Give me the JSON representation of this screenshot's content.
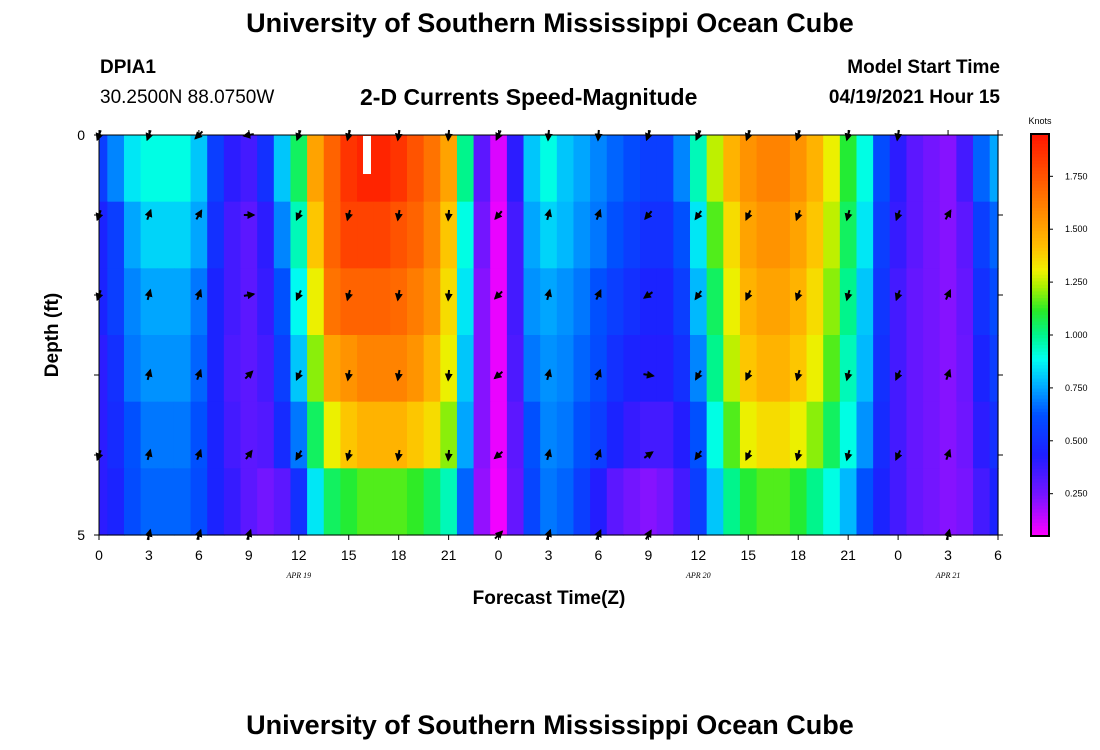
{
  "header": {
    "title": "University of Southern Mississippi Ocean Cube",
    "station": "DPIA1",
    "coords": "30.2500N  88.0750W",
    "chart_subtitle": "2-D Currents Speed-Magnitude",
    "model_start_label": "Model Start Time",
    "model_start_value": "04/19/2021 Hour 15"
  },
  "footer": {
    "title": "University of Southern Mississippi Ocean Cube"
  },
  "chart_data": {
    "type": "heatmap",
    "title": "2-D Currents Speed-Magnitude",
    "xlabel": "Forecast Time(Z)",
    "ylabel": "Depth (ft)",
    "x_ticks": [
      "0",
      "3",
      "6",
      "9",
      "12",
      "15",
      "18",
      "21",
      "0",
      "3",
      "6",
      "9",
      "12",
      "15",
      "18",
      "21",
      "0",
      "3",
      "6"
    ],
    "x_range_hours": [
      0,
      54
    ],
    "y_tick_labels": [
      "0",
      "5"
    ],
    "y_range_ft": [
      0,
      5
    ],
    "date_labels": [
      {
        "text": "APR  19",
        "hour": 12
      },
      {
        "text": "APR  20",
        "hour": 36
      },
      {
        "text": "APR  21",
        "hour": 51
      }
    ],
    "colorbar": {
      "unit": "Knots",
      "min": 0.05,
      "max": 1.95,
      "ticks": [
        "0.250",
        "0.500",
        "0.750",
        "1.000",
        "1.250",
        "1.500",
        "1.750"
      ],
      "tick_values": [
        0.25,
        0.5,
        0.75,
        1.0,
        1.25,
        1.5,
        1.75
      ]
    },
    "hours": [
      0,
      1,
      2,
      3,
      4,
      5,
      6,
      7,
      8,
      9,
      10,
      11,
      12,
      13,
      14,
      15,
      16,
      17,
      18,
      19,
      20,
      21,
      22,
      23,
      24,
      25,
      26,
      27,
      28,
      29,
      30,
      31,
      32,
      33,
      34,
      35,
      36,
      37,
      38,
      39,
      40,
      41,
      42,
      43,
      44,
      45,
      46,
      47,
      48,
      49,
      50,
      51,
      52,
      53,
      54
    ],
    "depth_layers_ft": [
      0,
      1,
      2,
      3,
      4,
      5
    ],
    "speed_knots": [
      [
        0.55,
        0.7,
        0.85,
        0.9,
        0.9,
        0.9,
        0.8,
        0.55,
        0.4,
        0.35,
        0.5,
        0.8,
        1.05,
        1.5,
        1.7,
        1.85,
        1.9,
        1.9,
        1.85,
        1.75,
        1.65,
        1.5,
        1.0,
        0.3,
        0.1,
        0.4,
        0.8,
        0.9,
        0.8,
        0.75,
        0.7,
        0.65,
        0.6,
        0.55,
        0.55,
        0.7,
        0.95,
        1.25,
        1.45,
        1.55,
        1.6,
        1.6,
        1.55,
        1.45,
        1.3,
        1.1,
        0.9,
        0.6,
        0.4,
        0.3,
        0.25,
        0.22,
        0.35,
        0.65,
        0.75
      ],
      [
        0.45,
        0.55,
        0.75,
        0.82,
        0.82,
        0.82,
        0.75,
        0.5,
        0.35,
        0.3,
        0.4,
        0.7,
        0.95,
        1.4,
        1.7,
        1.8,
        1.8,
        1.8,
        1.75,
        1.7,
        1.6,
        1.4,
        0.9,
        0.25,
        0.08,
        0.35,
        0.75,
        0.82,
        0.78,
        0.72,
        0.68,
        0.62,
        0.55,
        0.5,
        0.5,
        0.62,
        0.85,
        1.15,
        1.35,
        1.5,
        1.55,
        1.55,
        1.5,
        1.4,
        1.25,
        1.05,
        0.85,
        0.55,
        0.38,
        0.3,
        0.25,
        0.22,
        0.3,
        0.55,
        0.65
      ],
      [
        0.45,
        0.55,
        0.7,
        0.75,
        0.75,
        0.75,
        0.68,
        0.45,
        0.35,
        0.3,
        0.38,
        0.62,
        0.88,
        1.3,
        1.65,
        1.7,
        1.7,
        1.7,
        1.68,
        1.62,
        1.55,
        1.35,
        0.85,
        0.22,
        0.08,
        0.35,
        0.72,
        0.75,
        0.72,
        0.68,
        0.62,
        0.55,
        0.5,
        0.45,
        0.45,
        0.55,
        0.78,
        1.05,
        1.3,
        1.45,
        1.5,
        1.5,
        1.45,
        1.35,
        1.2,
        1.0,
        0.8,
        0.52,
        0.35,
        0.28,
        0.25,
        0.22,
        0.28,
        0.5,
        0.6
      ],
      [
        0.4,
        0.5,
        0.68,
        0.72,
        0.72,
        0.72,
        0.65,
        0.45,
        0.33,
        0.3,
        0.35,
        0.55,
        0.8,
        1.2,
        1.5,
        1.55,
        1.6,
        1.6,
        1.6,
        1.55,
        1.45,
        1.3,
        0.8,
        0.22,
        0.08,
        0.33,
        0.68,
        0.72,
        0.7,
        0.65,
        0.6,
        0.5,
        0.45,
        0.42,
        0.42,
        0.5,
        0.7,
        1.0,
        1.25,
        1.4,
        1.45,
        1.45,
        1.4,
        1.3,
        1.15,
        0.95,
        0.78,
        0.5,
        0.35,
        0.28,
        0.25,
        0.22,
        0.27,
        0.45,
        0.55
      ],
      [
        0.4,
        0.48,
        0.62,
        0.68,
        0.68,
        0.68,
        0.62,
        0.45,
        0.35,
        0.3,
        0.32,
        0.48,
        0.68,
        1.05,
        1.3,
        1.4,
        1.45,
        1.45,
        1.45,
        1.4,
        1.35,
        1.2,
        0.75,
        0.22,
        0.08,
        0.3,
        0.62,
        0.7,
        0.68,
        0.62,
        0.55,
        0.45,
        0.38,
        0.35,
        0.35,
        0.42,
        0.62,
        0.9,
        1.15,
        1.3,
        1.35,
        1.35,
        1.3,
        1.2,
        1.05,
        0.9,
        0.72,
        0.48,
        0.35,
        0.28,
        0.25,
        0.22,
        0.26,
        0.4,
        0.5
      ],
      [
        0.4,
        0.45,
        0.6,
        0.65,
        0.65,
        0.65,
        0.6,
        0.45,
        0.38,
        0.3,
        0.25,
        0.3,
        0.5,
        0.85,
        1.05,
        1.1,
        1.15,
        1.15,
        1.15,
        1.12,
        1.05,
        0.95,
        0.65,
        0.2,
        0.07,
        0.28,
        0.58,
        0.68,
        0.65,
        0.55,
        0.42,
        0.3,
        0.25,
        0.22,
        0.25,
        0.35,
        0.55,
        0.8,
        1.0,
        1.1,
        1.15,
        1.15,
        1.1,
        1.0,
        0.9,
        0.78,
        0.62,
        0.45,
        0.35,
        0.28,
        0.25,
        0.22,
        0.24,
        0.35,
        0.45
      ]
    ],
    "arrow_hours": [
      0,
      3,
      6,
      9,
      12,
      15,
      18,
      21,
      24,
      27,
      30,
      33,
      36,
      39,
      42,
      45,
      48,
      51
    ],
    "arrow_depths_ft": [
      0,
      1,
      2,
      3,
      4,
      5
    ],
    "arrow_direction_deg": [
      [
        -160,
        -160,
        -135,
        -100,
        -160,
        -165,
        -170,
        -175,
        -155,
        -175,
        -175,
        -160,
        -155,
        -160,
        -160,
        -165,
        -170,
        null
      ],
      [
        -160,
        20,
        30,
        90,
        -155,
        -165,
        -170,
        -175,
        -140,
        15,
        20,
        -140,
        -145,
        -155,
        -160,
        -165,
        -160,
        30
      ],
      [
        -160,
        15,
        20,
        80,
        -155,
        -165,
        -170,
        -175,
        -135,
        15,
        25,
        -125,
        -145,
        -155,
        -160,
        -165,
        -160,
        25
      ],
      [
        null,
        15,
        20,
        45,
        -155,
        -170,
        -170,
        -175,
        -130,
        15,
        20,
        100,
        -150,
        -155,
        -165,
        -165,
        -155,
        20
      ],
      [
        -160,
        15,
        20,
        35,
        -150,
        -165,
        -170,
        -175,
        -130,
        15,
        20,
        55,
        -145,
        -155,
        -165,
        -165,
        -155,
        20
      ],
      [
        null,
        15,
        20,
        20,
        null,
        null,
        null,
        null,
        45,
        20,
        25,
        30,
        null,
        null,
        null,
        null,
        null,
        15
      ]
    ]
  }
}
